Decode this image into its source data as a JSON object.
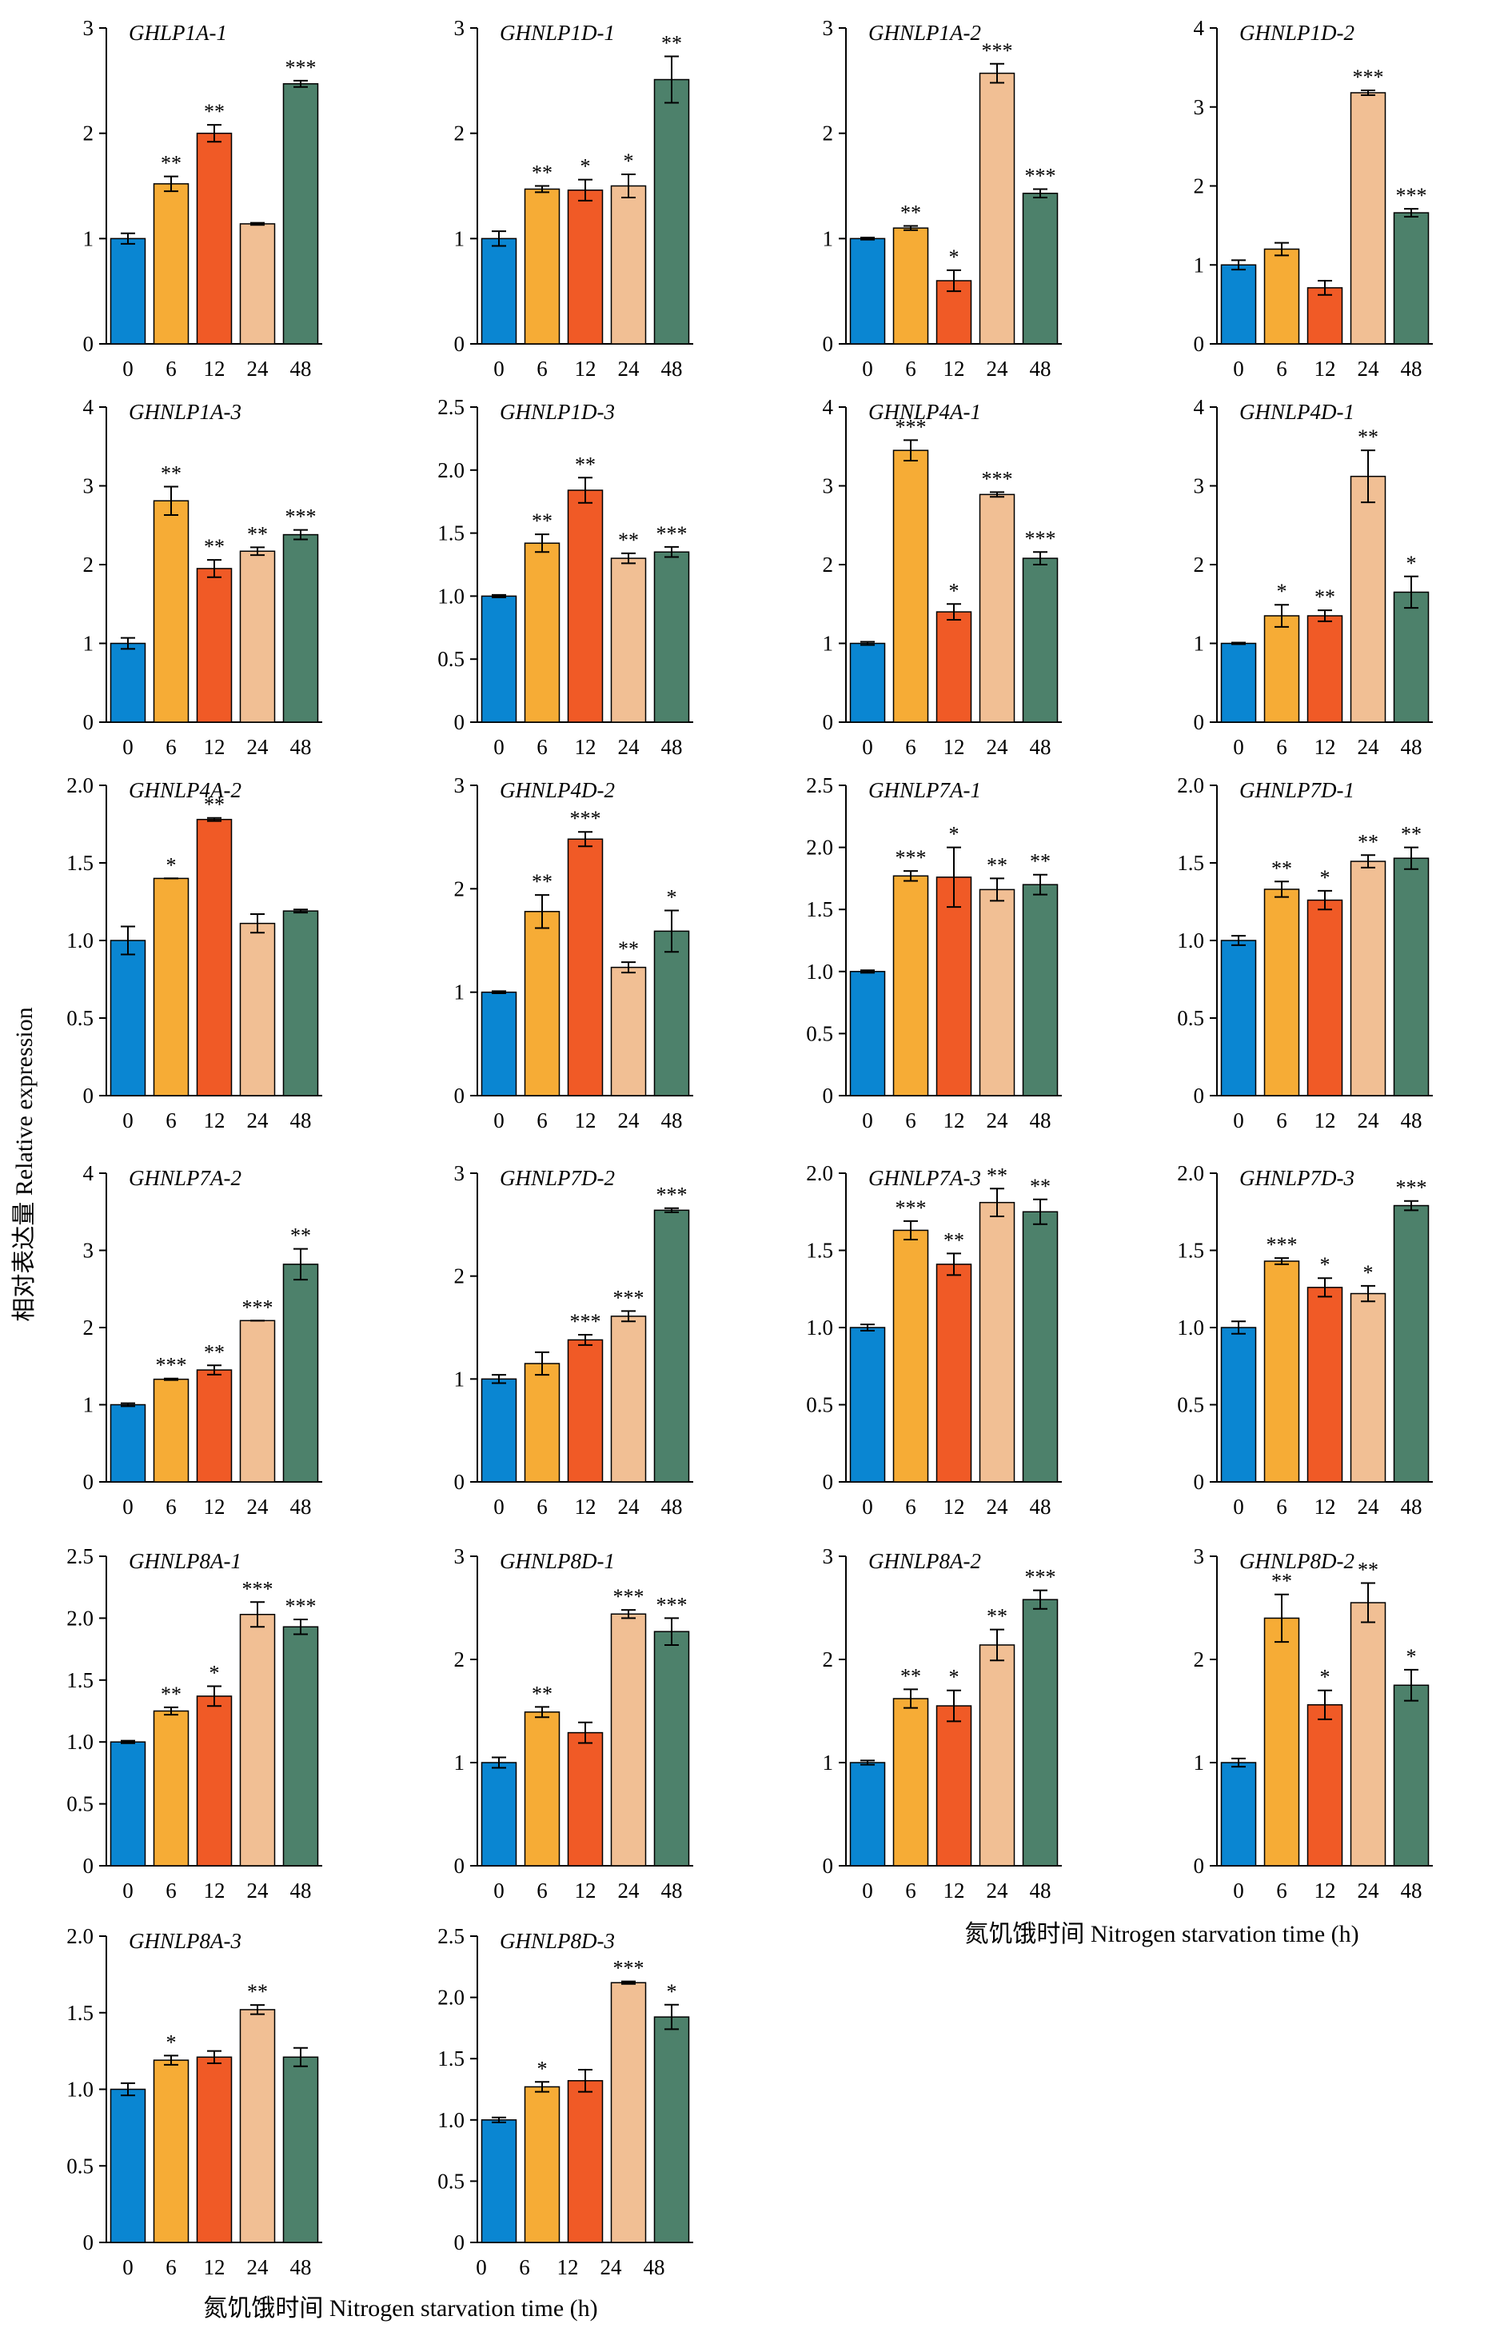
{
  "figure": {
    "ylabel": "相对表达量 Relative expression",
    "xlabel_top": "氮饥饿时间 Nitrogen starvation time (h)",
    "xlabel_bottom": "氮饥饿时间 Nitrogen starvation time (h)"
  },
  "colors": [
    "#0a86d2",
    "#f6ac36",
    "#f05a26",
    "#f1bf94",
    "#4d816b"
  ],
  "chart_data": [
    {
      "type": "bar",
      "title": "GHLP1A-1",
      "categories": [
        "0",
        "6",
        "12",
        "24",
        "48"
      ],
      "values": [
        1.0,
        1.52,
        2.0,
        1.14,
        2.47
      ],
      "errors": [
        0.05,
        0.07,
        0.08,
        0.01,
        0.03
      ],
      "significance": [
        "",
        "**",
        "**",
        "",
        "***"
      ],
      "ylim": [
        0,
        3
      ],
      "yticks": [
        "0",
        "1",
        "2",
        "3"
      ]
    },
    {
      "type": "bar",
      "title": "GHNLP1D-1",
      "categories": [
        "0",
        "6",
        "12",
        "24",
        "48"
      ],
      "values": [
        1.0,
        1.47,
        1.46,
        1.5,
        2.51
      ],
      "errors": [
        0.07,
        0.03,
        0.1,
        0.11,
        0.22
      ],
      "significance": [
        "",
        "**",
        "*",
        "*",
        "**"
      ],
      "ylim": [
        0,
        3
      ],
      "yticks": [
        "0",
        "1",
        "2",
        "3"
      ]
    },
    {
      "type": "bar",
      "title": "GHNLP1A-2",
      "categories": [
        "0",
        "6",
        "12",
        "24",
        "48"
      ],
      "values": [
        1.0,
        1.1,
        0.6,
        2.57,
        1.43
      ],
      "errors": [
        0.01,
        0.02,
        0.1,
        0.09,
        0.04
      ],
      "significance": [
        "",
        "**",
        "*",
        "***",
        "***"
      ],
      "ylim": [
        0,
        3
      ],
      "yticks": [
        "0",
        "1",
        "2",
        "3"
      ]
    },
    {
      "type": "bar",
      "title": "GHNLP1D-2",
      "categories": [
        "0",
        "6",
        "12",
        "24",
        "48"
      ],
      "values": [
        1.0,
        1.2,
        0.71,
        3.18,
        1.66
      ],
      "errors": [
        0.06,
        0.08,
        0.09,
        0.03,
        0.05
      ],
      "significance": [
        "",
        "",
        "",
        "***",
        "***"
      ],
      "ylim": [
        0,
        4
      ],
      "yticks": [
        "0",
        "1",
        "2",
        "3",
        "4"
      ]
    },
    {
      "type": "bar",
      "title": "GHNLP1A-3",
      "categories": [
        "0",
        "6",
        "12",
        "24",
        "48"
      ],
      "values": [
        1.0,
        2.81,
        1.95,
        2.17,
        2.38
      ],
      "errors": [
        0.07,
        0.18,
        0.11,
        0.05,
        0.06
      ],
      "significance": [
        "",
        "**",
        "**",
        "**",
        "***"
      ],
      "ylim": [
        0,
        4
      ],
      "yticks": [
        "0",
        "1",
        "2",
        "3",
        "4"
      ]
    },
    {
      "type": "bar",
      "title": "GHNLP1D-3",
      "categories": [
        "0",
        "6",
        "12",
        "24",
        "48"
      ],
      "values": [
        1.0,
        1.42,
        1.84,
        1.3,
        1.35
      ],
      "errors": [
        0.01,
        0.07,
        0.1,
        0.04,
        0.04
      ],
      "significance": [
        "",
        "**",
        "**",
        "**",
        "***"
      ],
      "ylim": [
        0,
        2.5
      ],
      "yticks": [
        "0",
        "0.5",
        "1.0",
        "1.5",
        "2.0",
        "2.5"
      ]
    },
    {
      "type": "bar",
      "title": "GHNLP4A-1",
      "categories": [
        "0",
        "6",
        "12",
        "24",
        "48"
      ],
      "values": [
        1.0,
        3.45,
        1.4,
        2.89,
        2.08
      ],
      "errors": [
        0.02,
        0.13,
        0.1,
        0.03,
        0.08
      ],
      "significance": [
        "",
        "***",
        "*",
        "***",
        "***"
      ],
      "ylim": [
        0,
        4
      ],
      "yticks": [
        "0",
        "1",
        "2",
        "3",
        "4"
      ]
    },
    {
      "type": "bar",
      "title": "GHNLP4D-1",
      "categories": [
        "0",
        "6",
        "12",
        "24",
        "48"
      ],
      "values": [
        1.0,
        1.35,
        1.35,
        3.12,
        1.65
      ],
      "errors": [
        0.01,
        0.14,
        0.07,
        0.33,
        0.2
      ],
      "significance": [
        "",
        "*",
        "**",
        "**",
        "*"
      ],
      "ylim": [
        0,
        4
      ],
      "yticks": [
        "0",
        "1",
        "2",
        "3",
        "4"
      ]
    },
    {
      "type": "bar",
      "title": "GHNLP4A-2",
      "categories": [
        "0",
        "6",
        "12",
        "24",
        "48"
      ],
      "values": [
        1.0,
        1.4,
        1.78,
        1.11,
        1.19
      ],
      "errors": [
        0.09,
        0.0,
        0.01,
        0.06,
        0.01
      ],
      "significance": [
        "",
        "*",
        "**",
        "",
        ""
      ],
      "ylim": [
        0,
        2.0
      ],
      "yticks": [
        "0",
        "0.5",
        "1.0",
        "1.5",
        "2.0"
      ]
    },
    {
      "type": "bar",
      "title": "GHNLP4D-2",
      "categories": [
        "0",
        "6",
        "12",
        "24",
        "48"
      ],
      "values": [
        1.0,
        1.78,
        2.48,
        1.24,
        1.59
      ],
      "errors": [
        0.01,
        0.16,
        0.07,
        0.05,
        0.2
      ],
      "significance": [
        "",
        "**",
        "***",
        "**",
        "*"
      ],
      "ylim": [
        0,
        3
      ],
      "yticks": [
        "0",
        "1",
        "2",
        "3"
      ]
    },
    {
      "type": "bar",
      "title": "GHNLP7A-1",
      "categories": [
        "0",
        "6",
        "12",
        "24",
        "48"
      ],
      "values": [
        1.0,
        1.77,
        1.76,
        1.66,
        1.7
      ],
      "errors": [
        0.01,
        0.04,
        0.24,
        0.09,
        0.08
      ],
      "significance": [
        "",
        "***",
        "*",
        "**",
        "**"
      ],
      "ylim": [
        0,
        2.5
      ],
      "yticks": [
        "0",
        "0.5",
        "1.0",
        "1.5",
        "2.0",
        "2.5"
      ]
    },
    {
      "type": "bar",
      "title": "GHNLP7D-1",
      "categories": [
        "0",
        "6",
        "12",
        "24",
        "48"
      ],
      "values": [
        1.0,
        1.33,
        1.26,
        1.51,
        1.53
      ],
      "errors": [
        0.03,
        0.05,
        0.06,
        0.04,
        0.07
      ],
      "significance": [
        "",
        "**",
        "*",
        "**",
        "**"
      ],
      "ylim": [
        0,
        2.0
      ],
      "yticks": [
        "0",
        "0.5",
        "1.0",
        "1.5",
        "2.0"
      ]
    },
    {
      "type": "bar",
      "title": "GHNLP7A-2",
      "categories": [
        "0",
        "6",
        "12",
        "24",
        "48"
      ],
      "values": [
        1.0,
        1.33,
        1.45,
        2.09,
        2.82
      ],
      "errors": [
        0.02,
        0.01,
        0.06,
        0.0,
        0.2
      ],
      "significance": [
        "",
        "***",
        "**",
        "***",
        "**"
      ],
      "ylim": [
        0,
        4
      ],
      "yticks": [
        "0",
        "1",
        "2",
        "3",
        "4"
      ]
    },
    {
      "type": "bar",
      "title": "GHNLP7D-2",
      "categories": [
        "0",
        "6",
        "12",
        "24",
        "48"
      ],
      "values": [
        1.0,
        1.15,
        1.38,
        1.61,
        2.64
      ],
      "errors": [
        0.04,
        0.11,
        0.05,
        0.05,
        0.02
      ],
      "significance": [
        "",
        "",
        "***",
        "***",
        "***"
      ],
      "ylim": [
        0,
        3
      ],
      "yticks": [
        "0",
        "1",
        "2",
        "3"
      ]
    },
    {
      "type": "bar",
      "title": "GHNLP7A-3",
      "categories": [
        "0",
        "6",
        "12",
        "24",
        "48"
      ],
      "values": [
        1.0,
        1.63,
        1.41,
        1.81,
        1.75
      ],
      "errors": [
        0.02,
        0.06,
        0.07,
        0.09,
        0.08
      ],
      "significance": [
        "",
        "***",
        "**",
        "**",
        "**"
      ],
      "ylim": [
        0,
        2.0
      ],
      "yticks": [
        "0",
        "0.5",
        "1.0",
        "1.5",
        "2.0"
      ]
    },
    {
      "type": "bar",
      "title": "GHNLP7D-3",
      "categories": [
        "0",
        "6",
        "12",
        "24",
        "48"
      ],
      "values": [
        1.0,
        1.43,
        1.26,
        1.22,
        1.79
      ],
      "errors": [
        0.04,
        0.02,
        0.06,
        0.05,
        0.03
      ],
      "significance": [
        "",
        "***",
        "*",
        "*",
        "***"
      ],
      "ylim": [
        0,
        2.0
      ],
      "yticks": [
        "0",
        "0.5",
        "1.0",
        "1.5",
        "2.0"
      ]
    },
    {
      "type": "bar",
      "title": "GHNLP8A-1",
      "categories": [
        "0",
        "6",
        "12",
        "24",
        "48"
      ],
      "values": [
        1.0,
        1.25,
        1.37,
        2.03,
        1.93
      ],
      "errors": [
        0.01,
        0.03,
        0.08,
        0.1,
        0.06
      ],
      "significance": [
        "",
        "**",
        "*",
        "***",
        "***"
      ],
      "ylim": [
        0,
        2.5
      ],
      "yticks": [
        "0",
        "0.5",
        "1.0",
        "1.5",
        "2.0",
        "2.5"
      ]
    },
    {
      "type": "bar",
      "title": "GHNLP8D-1",
      "categories": [
        "0",
        "6",
        "12",
        "24",
        "48"
      ],
      "values": [
        1.0,
        1.49,
        1.29,
        2.44,
        2.27
      ],
      "errors": [
        0.05,
        0.05,
        0.1,
        0.04,
        0.13
      ],
      "significance": [
        "",
        "**",
        "",
        "***",
        "***"
      ],
      "ylim": [
        0,
        3
      ],
      "yticks": [
        "0",
        "1",
        "2",
        "3"
      ]
    },
    {
      "type": "bar",
      "title": "GHNLP8A-2",
      "categories": [
        "0",
        "6",
        "12",
        "24",
        "48"
      ],
      "values": [
        1.0,
        1.62,
        1.55,
        2.14,
        2.58
      ],
      "errors": [
        0.02,
        0.09,
        0.15,
        0.15,
        0.09
      ],
      "significance": [
        "",
        "**",
        "*",
        "**",
        "***"
      ],
      "ylim": [
        0,
        3
      ],
      "yticks": [
        "0",
        "1",
        "2",
        "3"
      ]
    },
    {
      "type": "bar",
      "title": "GHNLP8D-2",
      "categories": [
        "0",
        "6",
        "12",
        "24",
        "48"
      ],
      "values": [
        1.0,
        2.4,
        1.56,
        2.55,
        1.75
      ],
      "errors": [
        0.04,
        0.23,
        0.14,
        0.19,
        0.15
      ],
      "significance": [
        "",
        "**",
        "*",
        "**",
        "*"
      ],
      "ylim": [
        0,
        3
      ],
      "yticks": [
        "0",
        "1",
        "2",
        "3"
      ]
    },
    {
      "type": "bar",
      "title": "GHNLP8A-3",
      "categories": [
        "0",
        "6",
        "12",
        "24",
        "48"
      ],
      "values": [
        1.0,
        1.19,
        1.21,
        1.52,
        1.21
      ],
      "errors": [
        0.04,
        0.03,
        0.04,
        0.03,
        0.06
      ],
      "significance": [
        "",
        "*",
        "",
        "**",
        ""
      ],
      "ylim": [
        0,
        2.0
      ],
      "yticks": [
        "0",
        "0.5",
        "1.0",
        "1.5",
        "2.0"
      ]
    },
    {
      "type": "bar",
      "title": "GHNLP8D-3",
      "categories": [
        "0",
        "6",
        "12",
        "24",
        "48"
      ],
      "values": [
        1.0,
        1.27,
        1.32,
        2.12,
        1.84
      ],
      "errors": [
        0.02,
        0.04,
        0.09,
        0.01,
        0.1
      ],
      "significance": [
        "",
        "*",
        "",
        "***",
        "*"
      ],
      "ylim": [
        0,
        2.5
      ],
      "yticks": [
        "0",
        "0.5",
        "1.0",
        "1.5",
        "2.0",
        "2.5"
      ]
    }
  ]
}
